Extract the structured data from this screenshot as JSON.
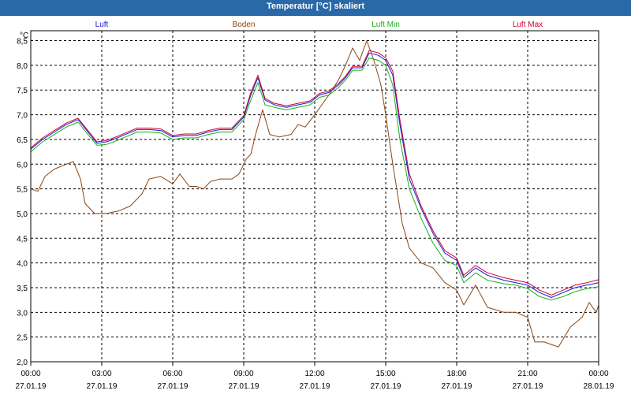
{
  "window": {
    "title": "Temperatur [°C] skaliert"
  },
  "colors": {
    "frame": "#000000",
    "grid": "#000000",
    "series": {
      "Luft": "#1a1ad6",
      "Boden": "#8b4513",
      "Luft Min": "#18b018",
      "Luft Max": "#cc0033"
    }
  },
  "chart_data": {
    "type": "line",
    "title": "Temperatur [°C] skaliert",
    "ylabel": "°C",
    "xlabel": "",
    "x_unit": "hours since 27.01.19 00:00",
    "xlim": [
      0,
      24
    ],
    "ylim": [
      2.0,
      8.7
    ],
    "grid": true,
    "legend_position": "top",
    "y_ticks": [
      2.0,
      2.5,
      3.0,
      3.5,
      4.0,
      4.5,
      5.0,
      5.5,
      6.0,
      6.5,
      7.0,
      7.5,
      8.0,
      8.5
    ],
    "y_tick_labels": [
      "2,0",
      "2,5",
      "3,0",
      "3,5",
      "4,0",
      "4,5",
      "5,0",
      "5,5",
      "6,0",
      "6,5",
      "7,0",
      "7,5",
      "8,0",
      "8,5"
    ],
    "x_ticks": [
      {
        "h": 0,
        "time": "00:00",
        "date": "27.01.19"
      },
      {
        "h": 3,
        "time": "03:00",
        "date": "27.01.19"
      },
      {
        "h": 6,
        "time": "06:00",
        "date": "27.01.19"
      },
      {
        "h": 9,
        "time": "09:00",
        "date": "27.01.19"
      },
      {
        "h": 12,
        "time": "12:00",
        "date": "27.01.19"
      },
      {
        "h": 15,
        "time": "15:00",
        "date": "27.01.19"
      },
      {
        "h": 18,
        "time": "18:00",
        "date": "27.01.19"
      },
      {
        "h": 21,
        "time": "21:00",
        "date": "27.01.19"
      },
      {
        "h": 24,
        "time": "00:00",
        "date": "28.01.19"
      }
    ],
    "series": [
      {
        "name": "Luft",
        "points": [
          [
            0,
            6.3
          ],
          [
            0.5,
            6.5
          ],
          [
            1,
            6.65
          ],
          [
            1.5,
            6.8
          ],
          [
            2,
            6.9
          ],
          [
            2.5,
            6.6
          ],
          [
            2.8,
            6.42
          ],
          [
            3.2,
            6.45
          ],
          [
            3.5,
            6.5
          ],
          [
            4,
            6.6
          ],
          [
            4.5,
            6.7
          ],
          [
            5,
            6.7
          ],
          [
            5.5,
            6.68
          ],
          [
            6,
            6.55
          ],
          [
            6.5,
            6.58
          ],
          [
            7,
            6.58
          ],
          [
            7.5,
            6.65
          ],
          [
            8,
            6.7
          ],
          [
            8.5,
            6.7
          ],
          [
            9,
            6.95
          ],
          [
            9.3,
            7.4
          ],
          [
            9.6,
            7.75
          ],
          [
            9.9,
            7.3
          ],
          [
            10.3,
            7.2
          ],
          [
            10.8,
            7.15
          ],
          [
            11.3,
            7.2
          ],
          [
            11.8,
            7.25
          ],
          [
            12.2,
            7.4
          ],
          [
            12.6,
            7.45
          ],
          [
            13,
            7.6
          ],
          [
            13.3,
            7.75
          ],
          [
            13.6,
            7.95
          ],
          [
            14,
            7.95
          ],
          [
            14.3,
            8.25
          ],
          [
            14.7,
            8.2
          ],
          [
            15.0,
            8.1
          ],
          [
            15.3,
            7.8
          ],
          [
            15.6,
            6.8
          ],
          [
            16,
            5.7
          ],
          [
            16.5,
            5.1
          ],
          [
            17,
            4.6
          ],
          [
            17.5,
            4.2
          ],
          [
            18,
            4.05
          ],
          [
            18.3,
            3.7
          ],
          [
            18.8,
            3.9
          ],
          [
            19.3,
            3.75
          ],
          [
            20,
            3.65
          ],
          [
            20.5,
            3.6
          ],
          [
            21,
            3.55
          ],
          [
            21.5,
            3.4
          ],
          [
            22,
            3.3
          ],
          [
            22.5,
            3.4
          ],
          [
            23,
            3.5
          ],
          [
            23.5,
            3.55
          ],
          [
            24,
            3.6
          ]
        ]
      },
      {
        "name": "Boden",
        "points": [
          [
            0,
            5.5
          ],
          [
            0.3,
            5.45
          ],
          [
            0.6,
            5.75
          ],
          [
            1,
            5.9
          ],
          [
            1.5,
            6.0
          ],
          [
            1.8,
            6.05
          ],
          [
            2.1,
            5.7
          ],
          [
            2.3,
            5.2
          ],
          [
            2.7,
            5.0
          ],
          [
            3.2,
            5.0
          ],
          [
            3.7,
            5.05
          ],
          [
            4.2,
            5.15
          ],
          [
            4.7,
            5.4
          ],
          [
            5,
            5.7
          ],
          [
            5.5,
            5.75
          ],
          [
            6,
            5.6
          ],
          [
            6.3,
            5.8
          ],
          [
            6.7,
            5.55
          ],
          [
            7,
            5.55
          ],
          [
            7.3,
            5.5
          ],
          [
            7.6,
            5.65
          ],
          [
            8,
            5.7
          ],
          [
            8.5,
            5.7
          ],
          [
            8.8,
            5.8
          ],
          [
            9.1,
            6.1
          ],
          [
            9.3,
            6.2
          ],
          [
            9.5,
            6.6
          ],
          [
            9.8,
            7.1
          ],
          [
            10.1,
            6.6
          ],
          [
            10.5,
            6.55
          ],
          [
            11,
            6.6
          ],
          [
            11.3,
            6.8
          ],
          [
            11.6,
            6.75
          ],
          [
            12,
            7.0
          ],
          [
            12.3,
            7.2
          ],
          [
            12.6,
            7.4
          ],
          [
            13,
            7.7
          ],
          [
            13.3,
            8.0
          ],
          [
            13.6,
            8.35
          ],
          [
            13.9,
            8.1
          ],
          [
            14.2,
            8.5
          ],
          [
            14.5,
            8.1
          ],
          [
            14.8,
            7.6
          ],
          [
            15.0,
            7.0
          ],
          [
            15.3,
            6.0
          ],
          [
            15.7,
            4.8
          ],
          [
            16,
            4.3
          ],
          [
            16.5,
            4.0
          ],
          [
            17,
            3.9
          ],
          [
            17.5,
            3.6
          ],
          [
            18,
            3.45
          ],
          [
            18.3,
            3.15
          ],
          [
            18.8,
            3.55
          ],
          [
            19.3,
            3.1
          ],
          [
            20,
            3.0
          ],
          [
            20.5,
            3.0
          ],
          [
            21,
            2.9
          ],
          [
            21.3,
            2.4
          ],
          [
            21.7,
            2.4
          ],
          [
            22,
            2.35
          ],
          [
            22.3,
            2.3
          ],
          [
            22.8,
            2.7
          ],
          [
            23.3,
            2.9
          ],
          [
            23.6,
            3.2
          ],
          [
            23.9,
            3.0
          ],
          [
            24,
            3.15
          ]
        ]
      },
      {
        "name": "Luft Min",
        "points": [
          [
            0,
            6.25
          ],
          [
            0.5,
            6.45
          ],
          [
            1,
            6.6
          ],
          [
            1.5,
            6.75
          ],
          [
            2,
            6.85
          ],
          [
            2.5,
            6.55
          ],
          [
            2.8,
            6.38
          ],
          [
            3.2,
            6.4
          ],
          [
            3.5,
            6.45
          ],
          [
            4,
            6.55
          ],
          [
            4.5,
            6.65
          ],
          [
            5,
            6.65
          ],
          [
            5.5,
            6.63
          ],
          [
            6,
            6.5
          ],
          [
            6.5,
            6.53
          ],
          [
            7,
            6.53
          ],
          [
            7.5,
            6.6
          ],
          [
            8,
            6.65
          ],
          [
            8.5,
            6.65
          ],
          [
            9,
            6.9
          ],
          [
            9.3,
            7.3
          ],
          [
            9.6,
            7.65
          ],
          [
            9.9,
            7.2
          ],
          [
            10.3,
            7.15
          ],
          [
            10.8,
            7.1
          ],
          [
            11.3,
            7.15
          ],
          [
            11.8,
            7.2
          ],
          [
            12.2,
            7.35
          ],
          [
            12.6,
            7.4
          ],
          [
            13,
            7.55
          ],
          [
            13.3,
            7.7
          ],
          [
            13.6,
            7.9
          ],
          [
            14,
            7.9
          ],
          [
            14.3,
            8.15
          ],
          [
            14.7,
            8.1
          ],
          [
            15.0,
            8.0
          ],
          [
            15.3,
            7.6
          ],
          [
            15.6,
            6.5
          ],
          [
            16,
            5.5
          ],
          [
            16.5,
            4.9
          ],
          [
            17,
            4.4
          ],
          [
            17.5,
            4.05
          ],
          [
            18,
            3.95
          ],
          [
            18.3,
            3.6
          ],
          [
            18.8,
            3.8
          ],
          [
            19.3,
            3.65
          ],
          [
            20,
            3.58
          ],
          [
            20.5,
            3.55
          ],
          [
            21,
            3.48
          ],
          [
            21.5,
            3.32
          ],
          [
            22,
            3.25
          ],
          [
            22.5,
            3.32
          ],
          [
            23,
            3.42
          ],
          [
            23.5,
            3.48
          ],
          [
            24,
            3.52
          ]
        ]
      },
      {
        "name": "Luft Max",
        "points": [
          [
            0,
            6.33
          ],
          [
            0.5,
            6.53
          ],
          [
            1,
            6.68
          ],
          [
            1.5,
            6.83
          ],
          [
            2,
            6.93
          ],
          [
            2.5,
            6.63
          ],
          [
            2.8,
            6.45
          ],
          [
            3.2,
            6.48
          ],
          [
            3.5,
            6.53
          ],
          [
            4,
            6.63
          ],
          [
            4.5,
            6.73
          ],
          [
            5,
            6.73
          ],
          [
            5.5,
            6.71
          ],
          [
            6,
            6.58
          ],
          [
            6.5,
            6.61
          ],
          [
            7,
            6.61
          ],
          [
            7.5,
            6.68
          ],
          [
            8,
            6.73
          ],
          [
            8.5,
            6.73
          ],
          [
            9,
            6.98
          ],
          [
            9.3,
            7.45
          ],
          [
            9.6,
            7.8
          ],
          [
            9.9,
            7.33
          ],
          [
            10.3,
            7.23
          ],
          [
            10.8,
            7.18
          ],
          [
            11.3,
            7.23
          ],
          [
            11.8,
            7.28
          ],
          [
            12.2,
            7.43
          ],
          [
            12.6,
            7.48
          ],
          [
            13,
            7.63
          ],
          [
            13.3,
            7.78
          ],
          [
            13.6,
            7.98
          ],
          [
            14,
            7.98
          ],
          [
            14.3,
            8.3
          ],
          [
            14.7,
            8.25
          ],
          [
            15.0,
            8.15
          ],
          [
            15.3,
            7.88
          ],
          [
            15.6,
            6.9
          ],
          [
            16,
            5.8
          ],
          [
            16.5,
            5.15
          ],
          [
            17,
            4.65
          ],
          [
            17.5,
            4.25
          ],
          [
            18,
            4.1
          ],
          [
            18.3,
            3.75
          ],
          [
            18.8,
            3.95
          ],
          [
            19.3,
            3.8
          ],
          [
            20,
            3.7
          ],
          [
            20.5,
            3.65
          ],
          [
            21,
            3.6
          ],
          [
            21.5,
            3.45
          ],
          [
            22,
            3.35
          ],
          [
            22.5,
            3.45
          ],
          [
            23,
            3.55
          ],
          [
            23.5,
            3.6
          ],
          [
            24,
            3.66
          ]
        ]
      }
    ]
  }
}
